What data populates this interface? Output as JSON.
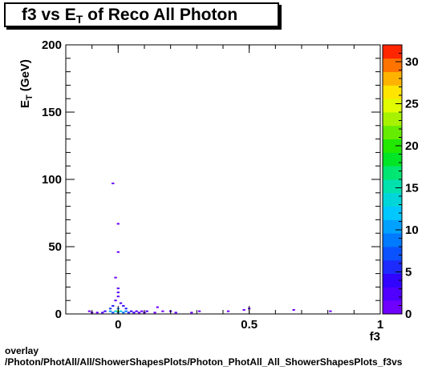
{
  "title": {
    "main": "f3 vs E",
    "sub": "T",
    "rest": " of Reco All Photon"
  },
  "footer": {
    "line1": "overlay",
    "line2": "/Photon/PhotAll/All/ShowerShapesPlots/Photon_PhotAll_All_ShowerShapesPlots_f3vs"
  },
  "chart_data": {
    "type": "heatmap",
    "title": "f3 vs E_T of Reco All Photon",
    "xlabel": "f3",
    "ylabel": "E_T (GeV)",
    "xlim": [
      -0.2,
      1.0
    ],
    "ylim": [
      0,
      200
    ],
    "x_ticks": [
      "0",
      "0.5",
      "1"
    ],
    "y_ticks": [
      "0",
      "50",
      "100",
      "150",
      "200"
    ],
    "colorbar": {
      "min": 0,
      "max": 32,
      "ticks": [
        "0",
        "5",
        "10",
        "15",
        "20",
        "25",
        "30"
      ]
    },
    "cells": [
      {
        "x": -0.02,
        "y": 97,
        "v": 1
      },
      {
        "x": 0.0,
        "y": 67,
        "v": 1
      },
      {
        "x": 0.0,
        "y": 46,
        "v": 1
      },
      {
        "x": -0.01,
        "y": 27,
        "v": 1
      },
      {
        "x": 0.0,
        "y": 19,
        "v": 2
      },
      {
        "x": 0.0,
        "y": 16,
        "v": 2
      },
      {
        "x": 0.0,
        "y": 13,
        "v": 2
      },
      {
        "x": -0.01,
        "y": 10,
        "v": 2
      },
      {
        "x": 0.01,
        "y": 8,
        "v": 3
      },
      {
        "x": -0.02,
        "y": 6,
        "v": 5
      },
      {
        "x": 0.02,
        "y": 6,
        "v": 4
      },
      {
        "x": 0.0,
        "y": 4,
        "v": 9
      },
      {
        "x": -0.03,
        "y": 4,
        "v": 6
      },
      {
        "x": 0.03,
        "y": 4,
        "v": 5
      },
      {
        "x": 0.0,
        "y": 2,
        "v": 22
      },
      {
        "x": -0.01,
        "y": 2,
        "v": 14
      },
      {
        "x": 0.01,
        "y": 2,
        "v": 12
      },
      {
        "x": -0.03,
        "y": 2,
        "v": 10
      },
      {
        "x": 0.03,
        "y": 2,
        "v": 9
      },
      {
        "x": -0.05,
        "y": 2,
        "v": 4
      },
      {
        "x": 0.05,
        "y": 2,
        "v": 4
      },
      {
        "x": 0.07,
        "y": 2,
        "v": 2
      },
      {
        "x": 0.09,
        "y": 2,
        "v": 1
      },
      {
        "x": 0.11,
        "y": 2,
        "v": 2
      },
      {
        "x": -0.06,
        "y": 1,
        "v": 2
      },
      {
        "x": -0.08,
        "y": 1,
        "v": 1
      },
      {
        "x": 0.0,
        "y": 1,
        "v": 10
      },
      {
        "x": 0.02,
        "y": 1,
        "v": 8
      },
      {
        "x": -0.02,
        "y": 1,
        "v": 7
      },
      {
        "x": 0.04,
        "y": 1,
        "v": 5
      },
      {
        "x": 0.06,
        "y": 1,
        "v": 3
      },
      {
        "x": 0.08,
        "y": 1,
        "v": 2
      },
      {
        "x": 0.1,
        "y": 1,
        "v": 1
      },
      {
        "x": 0.14,
        "y": 1,
        "v": 1
      },
      {
        "x": 0.2,
        "y": 2,
        "v": 1
      },
      {
        "x": 0.22,
        "y": 1,
        "v": 1
      },
      {
        "x": 0.15,
        "y": 5,
        "v": 1
      },
      {
        "x": 0.28,
        "y": 1,
        "v": 1
      },
      {
        "x": 0.31,
        "y": 2,
        "v": 1
      },
      {
        "x": 0.42,
        "y": 2,
        "v": 1
      },
      {
        "x": 0.48,
        "y": 3,
        "v": 1
      },
      {
        "x": 0.5,
        "y": 4,
        "v": 1
      },
      {
        "x": 0.67,
        "y": 3,
        "v": 1
      },
      {
        "x": 0.81,
        "y": 2,
        "v": 1
      },
      {
        "x": -0.11,
        "y": 2,
        "v": 1
      },
      {
        "x": -0.1,
        "y": 1,
        "v": 1
      },
      {
        "x": 0.17,
        "y": 2,
        "v": 1
      }
    ]
  }
}
